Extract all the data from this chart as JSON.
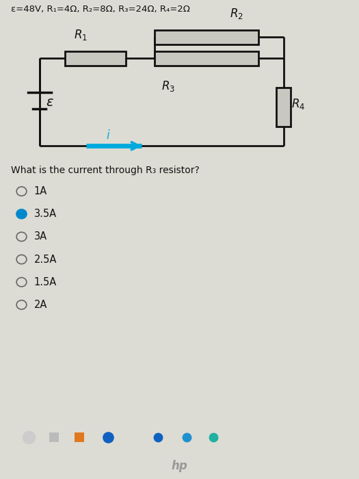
{
  "title_text": "ε=48V, R₁=4Ω, R₂=8Ω, R₃=24Ω, R₄=2Ω",
  "bg_color": "#dcdcd4",
  "circuit_color": "#111111",
  "wire_color": "#111111",
  "arrow_color": "#00aadd",
  "question": "What is the current through R₃ resistor?",
  "options": [
    "1A",
    "3.5A",
    "3A",
    "2.5A",
    "1.5A",
    "2A"
  ],
  "selected": "3.5A",
  "selected_color": "#0088cc",
  "unselected_color": "#666666",
  "taskbar_color": "#2a2a2a",
  "resistor_face": "#c8c8c0"
}
